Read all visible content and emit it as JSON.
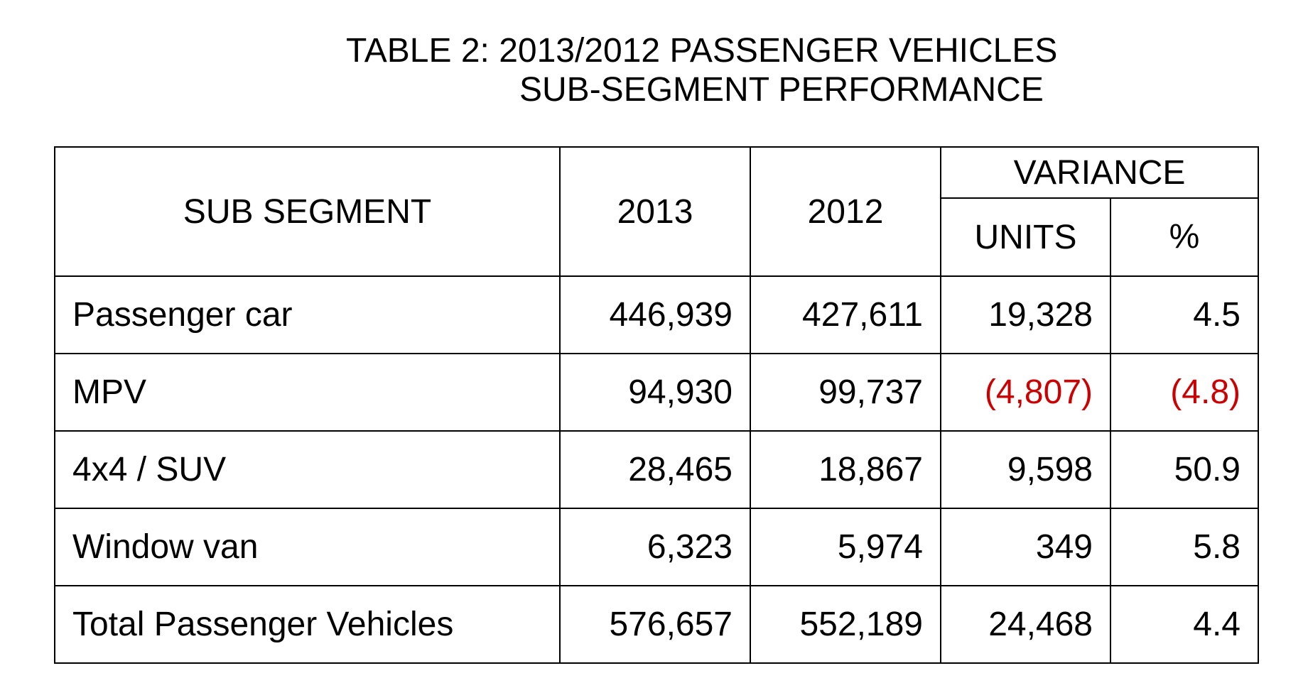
{
  "title": {
    "line1": "TABLE 2:  2013/2012 PASSENGER VEHICLES",
    "line2": "SUB-SEGMENT PERFORMANCE"
  },
  "table": {
    "headers": {
      "sub_segment": "SUB SEGMENT",
      "year_2013": "2013",
      "year_2012": "2012",
      "variance": "VARIANCE",
      "units": "UNITS",
      "percent": "%"
    },
    "rows": [
      {
        "segment": "Passenger car",
        "v2013": "446,939",
        "v2012": "427,611",
        "units": "19,328",
        "percent": "4.5",
        "negative": false
      },
      {
        "segment": "MPV",
        "v2013": "94,930",
        "v2012": "99,737",
        "units": "(4,807)",
        "percent": "(4.8)",
        "negative": true
      },
      {
        "segment": "4x4 / SUV",
        "v2013": "28,465",
        "v2012": "18,867",
        "units": "9,598",
        "percent": "50.9",
        "negative": false
      },
      {
        "segment": "Window van",
        "v2013": "6,323",
        "v2012": "5,974",
        "units": "349",
        "percent": "5.8",
        "negative": false
      },
      {
        "segment": "Total Passenger Vehicles",
        "v2013": "576,657",
        "v2012": "552,189",
        "units": "24,468",
        "percent": "4.4",
        "negative": false
      }
    ]
  },
  "colors": {
    "negative": "#cc0000",
    "text": "#000000",
    "border": "#000000"
  }
}
